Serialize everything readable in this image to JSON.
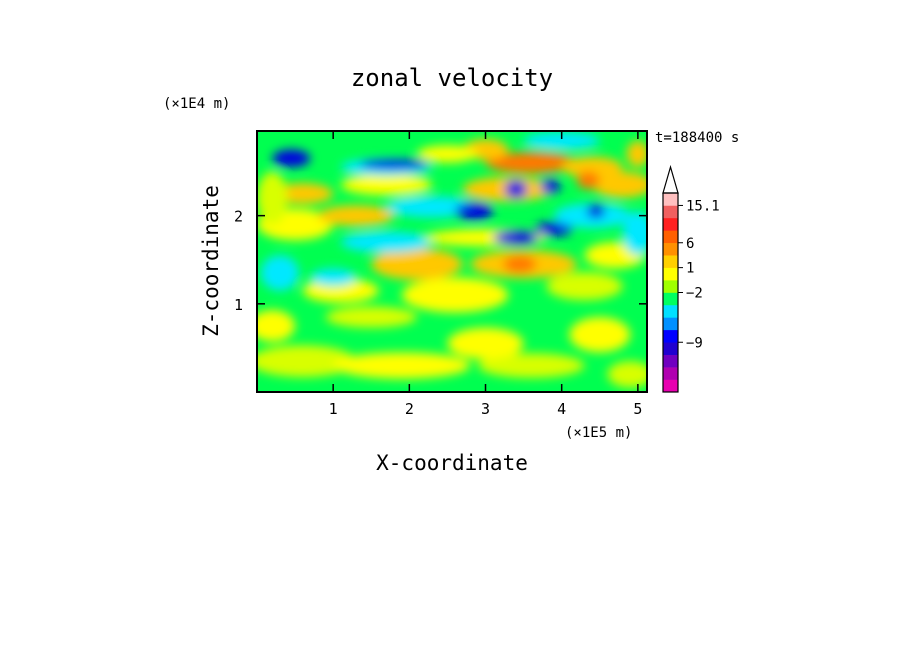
{
  "chart_data": {
    "type": "heatmap",
    "title": "zonal velocity",
    "xlabel": "X-coordinate",
    "ylabel": "Z-coordinate",
    "x_unit": "(×1E5 m)",
    "y_unit": "(×1E4 m)",
    "time_label": "t=188400 s",
    "xlim": [
      0,
      5.12
    ],
    "ylim": [
      0,
      2.96
    ],
    "x_ticks": [
      "1",
      "2",
      "3",
      "4",
      "5"
    ],
    "y_ticks": [
      "1",
      "2"
    ],
    "colorbar": {
      "labels": [
        "15.1",
        "6",
        "1",
        "−2",
        "−9"
      ],
      "extend": "max",
      "levels": [
        {
          "color": "#e800b0"
        },
        {
          "color": "#b000b0"
        },
        {
          "color": "#7000c0"
        },
        {
          "color": "#2000d0"
        },
        {
          "color": "#0000ff"
        },
        {
          "color": "#0090ff"
        },
        {
          "color": "#00e0ff"
        },
        {
          "color": "#00ff60"
        },
        {
          "color": "#a0ff00"
        },
        {
          "color": "#ffff00"
        },
        {
          "color": "#ffd000"
        },
        {
          "color": "#ff9000"
        },
        {
          "color": "#ff6000"
        },
        {
          "color": "#ff2020"
        },
        {
          "color": "#f06060"
        },
        {
          "color": "#ffc0c0"
        }
      ]
    },
    "field_colors": {
      "strong_neg": "#0000e0",
      "neg": "#00e8ff",
      "weak_neg": "#00ff50",
      "zero": "#d8ff00",
      "weak_pos": "#ffff00",
      "pos": "#ffc800",
      "strong_pos": "#ff7800"
    }
  }
}
